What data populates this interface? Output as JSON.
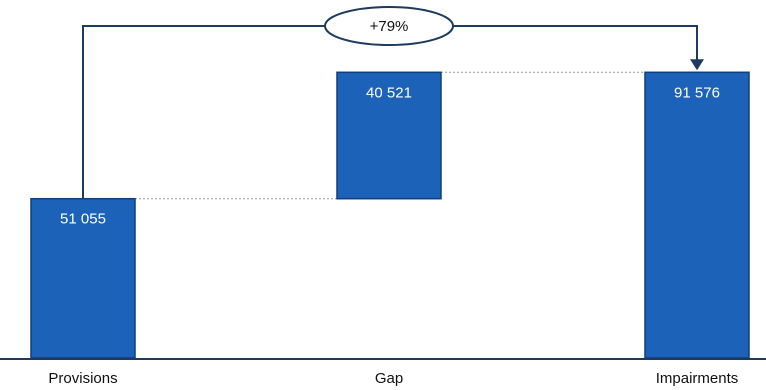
{
  "chart_data": {
    "type": "bar",
    "subtype": "waterfall",
    "categories": [
      "Provisions",
      "Gap",
      "Impairments"
    ],
    "values": [
      51055,
      40521,
      91576
    ],
    "value_labels": [
      "51 055",
      "40 521",
      "91 576"
    ],
    "bar_kinds": [
      "total",
      "increment",
      "total"
    ],
    "title": "",
    "xlabel": "",
    "ylabel": "",
    "ylim": [
      0,
      100000
    ],
    "grid": false,
    "legend": "none",
    "annotation": {
      "text": "+79%",
      "from": "Provisions",
      "to": "Impairments"
    },
    "colors": {
      "bar_fill": "#1c62b9",
      "bar_stroke": "#0f3f7a",
      "connector": "#1f3a5f",
      "baseline": "#1f3a5f",
      "leader": "#999999"
    }
  }
}
